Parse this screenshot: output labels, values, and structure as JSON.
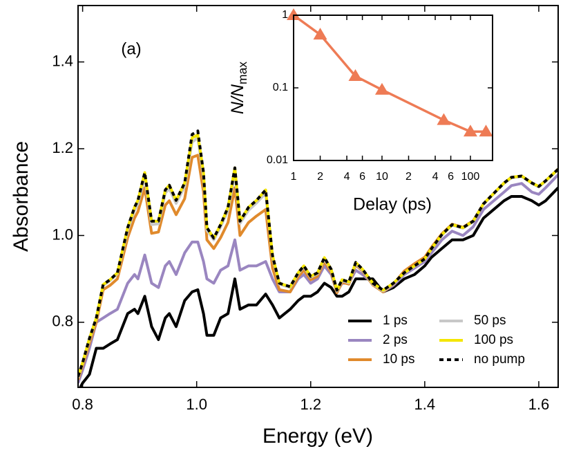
{
  "chart_data": [
    {
      "type": "line",
      "xlabel": "Energy (eV)",
      "ylabel": "Absorbance",
      "annotation": "(a)",
      "xlim": [
        0.792,
        1.634
      ],
      "ylim": [
        0.65,
        1.53
      ],
      "xticks": [
        0.8,
        {
          "value": 1,
          "label": "1.0"
        },
        1.2,
        1.4,
        1.6
      ],
      "yticks": [
        0.8,
        {
          "value": 1,
          "label": "1.0"
        },
        1.2,
        1.4
      ],
      "legend": "lower right",
      "legend_columns": 2,
      "x": [
        0.792,
        0.8,
        0.812,
        0.824,
        0.836,
        0.848,
        0.861,
        0.879,
        0.891,
        0.897,
        0.909,
        0.921,
        0.933,
        0.945,
        0.952,
        0.964,
        0.979,
        0.992,
        1.002,
        1.012,
        1.018,
        1.03,
        1.042,
        1.055,
        1.067,
        1.076,
        1.091,
        1.105,
        1.121,
        1.133,
        1.145,
        1.164,
        1.178,
        1.188,
        1.2,
        1.212,
        1.224,
        1.236,
        1.246,
        1.255,
        1.267,
        1.279,
        1.291,
        1.309,
        1.327,
        1.345,
        1.364,
        1.382,
        1.4,
        1.412,
        1.43,
        1.448,
        1.467,
        1.485,
        1.503,
        1.521,
        1.539,
        1.552,
        1.57,
        1.588,
        1.6,
        1.612,
        1.634
      ],
      "series": [
        {
          "name": "1 ps",
          "color": "#000000",
          "linestyle": "solid",
          "values": [
            0.64,
            0.66,
            0.68,
            0.74,
            0.74,
            0.75,
            0.76,
            0.82,
            0.83,
            0.82,
            0.86,
            0.79,
            0.76,
            0.81,
            0.82,
            0.79,
            0.85,
            0.87,
            0.875,
            0.82,
            0.77,
            0.77,
            0.81,
            0.82,
            0.9,
            0.83,
            0.84,
            0.84,
            0.865,
            0.84,
            0.81,
            0.83,
            0.85,
            0.86,
            0.86,
            0.87,
            0.89,
            0.88,
            0.86,
            0.86,
            0.87,
            0.9,
            0.9,
            0.9,
            0.87,
            0.88,
            0.9,
            0.91,
            0.93,
            0.95,
            0.97,
            0.99,
            0.99,
            1.0,
            1.04,
            1.06,
            1.08,
            1.09,
            1.09,
            1.08,
            1.07,
            1.08,
            1.11
          ]
        },
        {
          "name": "2 ps",
          "color": "#9a86c0",
          "linestyle": "solid",
          "values": [
            0.66,
            0.69,
            0.74,
            0.8,
            0.81,
            0.82,
            0.83,
            0.89,
            0.91,
            0.9,
            0.955,
            0.89,
            0.88,
            0.93,
            0.94,
            0.91,
            0.96,
            0.985,
            0.985,
            0.94,
            0.9,
            0.89,
            0.92,
            0.93,
            0.99,
            0.92,
            0.93,
            0.93,
            0.94,
            0.9,
            0.87,
            0.87,
            0.9,
            0.91,
            0.89,
            0.9,
            0.93,
            0.91,
            0.87,
            0.89,
            0.89,
            0.92,
            0.91,
            0.89,
            0.87,
            0.885,
            0.91,
            0.925,
            0.94,
            0.96,
            0.99,
            1.01,
            1.0,
            1.02,
            1.06,
            1.08,
            1.1,
            1.115,
            1.12,
            1.1,
            1.095,
            1.11,
            1.14
          ]
        },
        {
          "name": "10 ps",
          "color": "#e08a2c",
          "linestyle": "solid",
          "values": [
            0.668,
            0.7,
            0.752,
            0.8,
            0.875,
            0.885,
            0.9,
            0.995,
            1.04,
            1.055,
            1.11,
            1.005,
            1.008,
            1.07,
            1.08,
            1.048,
            1.085,
            1.18,
            1.185,
            1.1,
            0.99,
            0.97,
            0.995,
            1.03,
            1.11,
            1.0,
            1.03,
            1.045,
            1.06,
            0.925,
            0.875,
            0.87,
            0.905,
            0.92,
            0.898,
            0.906,
            0.94,
            0.915,
            0.868,
            0.892,
            0.888,
            0.932,
            0.918,
            0.886,
            0.87,
            0.888,
            0.918,
            0.935,
            0.95,
            0.973,
            1.004,
            1.026,
            1.019,
            1.034,
            1.073,
            1.097,
            1.121,
            1.134,
            1.137,
            1.121,
            1.113,
            1.126,
            1.153
          ]
        },
        {
          "name": "50 ps",
          "color": "#c8c8c8",
          "linestyle": "solid",
          "values": [
            0.672,
            0.705,
            0.76,
            0.808,
            0.885,
            0.896,
            0.912,
            1.012,
            1.058,
            1.073,
            1.135,
            1.025,
            1.027,
            1.098,
            1.108,
            1.074,
            1.113,
            1.215,
            1.225,
            1.135,
            1.012,
            0.99,
            1.02,
            1.058,
            1.145,
            1.028,
            1.058,
            1.075,
            1.098,
            0.95,
            0.888,
            0.88,
            0.912,
            0.928,
            0.904,
            0.912,
            0.946,
            0.92,
            0.872,
            0.896,
            0.891,
            0.935,
            0.92,
            0.888,
            0.872,
            0.889,
            0.913,
            0.929,
            0.945,
            0.969,
            1.001,
            1.024,
            1.017,
            1.032,
            1.072,
            1.096,
            1.12,
            1.133,
            1.136,
            1.12,
            1.112,
            1.125,
            1.152
          ]
        },
        {
          "name": "100 ps",
          "color": "#f4e600",
          "linestyle": "solid",
          "values": [
            0.675,
            0.707,
            0.763,
            0.81,
            0.887,
            0.898,
            0.914,
            1.018,
            1.065,
            1.081,
            1.145,
            1.033,
            1.033,
            1.105,
            1.116,
            1.081,
            1.121,
            1.225,
            1.232,
            1.145,
            1.018,
            0.994,
            1.025,
            1.065,
            1.156,
            1.033,
            1.065,
            1.081,
            1.105,
            0.954,
            0.89,
            0.882,
            0.914,
            0.93,
            0.906,
            0.914,
            0.949,
            0.922,
            0.874,
            0.898,
            0.893,
            0.938,
            0.922,
            0.89,
            0.874,
            0.89,
            0.914,
            0.93,
            0.946,
            0.97,
            1.002,
            1.025,
            1.018,
            1.033,
            1.073,
            1.097,
            1.121,
            1.134,
            1.137,
            1.121,
            1.113,
            1.126,
            1.153
          ]
        },
        {
          "name": "no pump",
          "color": "#000000",
          "linestyle": "dashed",
          "values": [
            0.675,
            0.707,
            0.763,
            0.81,
            0.887,
            0.898,
            0.914,
            1.018,
            1.065,
            1.081,
            1.145,
            1.033,
            1.033,
            1.105,
            1.116,
            1.081,
            1.121,
            1.233,
            1.241,
            1.145,
            1.018,
            0.994,
            1.025,
            1.065,
            1.156,
            1.033,
            1.065,
            1.081,
            1.105,
            0.954,
            0.89,
            0.882,
            0.914,
            0.93,
            0.906,
            0.914,
            0.949,
            0.922,
            0.874,
            0.898,
            0.893,
            0.938,
            0.922,
            0.89,
            0.874,
            0.89,
            0.914,
            0.93,
            0.946,
            0.97,
            1.002,
            1.025,
            1.018,
            1.033,
            1.073,
            1.097,
            1.121,
            1.134,
            1.137,
            1.121,
            1.113,
            1.126,
            1.153
          ]
        }
      ]
    },
    {
      "type": "line",
      "xlabel": "Delay (ps)",
      "ylabel": "N/N",
      "ylabel_subscript": "max",
      "log_x": true,
      "log_y": true,
      "xlim": [
        1,
        178
      ],
      "ylim": [
        0.01,
        1
      ],
      "xticks": [
        1,
        2,
        4,
        6,
        10,
        {
          "value": 20,
          "label": "2"
        },
        {
          "value": 40,
          "label": "4"
        },
        {
          "value": 60,
          "label": "6"
        },
        100
      ],
      "yticks": [
        0.01,
        0.1,
        1
      ],
      "x": [
        1,
        2,
        5,
        10,
        50,
        100,
        150
      ],
      "series": [
        {
          "color": "#ee7b55",
          "marker": "triangle",
          "linestyle": "solid",
          "values": [
            1,
            0.54,
            0.145,
            0.094,
            0.036,
            0.025,
            0.025
          ]
        }
      ]
    }
  ]
}
